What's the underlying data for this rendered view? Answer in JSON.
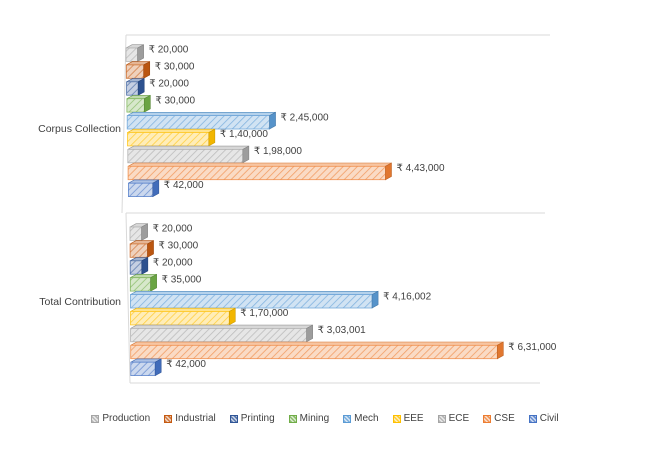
{
  "chart_data": {
    "type": "bar",
    "orientation": "horizontal",
    "style": "3d-hatched",
    "categories": [
      "Corpus Collection",
      "Total Contribution"
    ],
    "series": [
      {
        "name": "Production",
        "color": "#a5a5a5",
        "values": [
          20000,
          20000
        ],
        "labels": [
          "₹ 20,000",
          "₹ 20,000"
        ]
      },
      {
        "name": "Industrial",
        "color": "#c55a11",
        "values": [
          30000,
          30000
        ],
        "labels": [
          "₹ 30,000",
          "₹ 30,000"
        ]
      },
      {
        "name": "Printing",
        "color": "#2f5597",
        "values": [
          20000,
          20000
        ],
        "labels": [
          "₹ 20,000",
          "₹ 20,000"
        ]
      },
      {
        "name": "Mining",
        "color": "#70ad47",
        "values": [
          30000,
          35000
        ],
        "labels": [
          "₹ 30,000",
          "₹ 35,000"
        ]
      },
      {
        "name": "Mech",
        "color": "#5b9bd5",
        "values": [
          245000,
          416002
        ],
        "labels": [
          "₹ 2,45,000",
          "₹ 4,16,002"
        ]
      },
      {
        "name": "EEE",
        "color": "#ffc000",
        "values": [
          140000,
          170000
        ],
        "labels": [
          "₹ 1,40,000",
          "₹ 1,70,000"
        ]
      },
      {
        "name": "ECE",
        "color": "#a5a5a5",
        "values": [
          198000,
          303001
        ],
        "labels": [
          "₹ 1,98,000",
          "₹ 3,03,001"
        ]
      },
      {
        "name": "CSE",
        "color": "#ed7d31",
        "values": [
          443000,
          631000
        ],
        "labels": [
          "₹ 4,43,000",
          "₹ 6,31,000"
        ]
      },
      {
        "name": "Civil",
        "color": "#4472c4",
        "values": [
          42000,
          42000
        ],
        "labels": [
          "₹ 42,000",
          "₹ 42,000"
        ]
      }
    ],
    "xlim": [
      0,
      700000
    ],
    "legend": "bottom"
  }
}
